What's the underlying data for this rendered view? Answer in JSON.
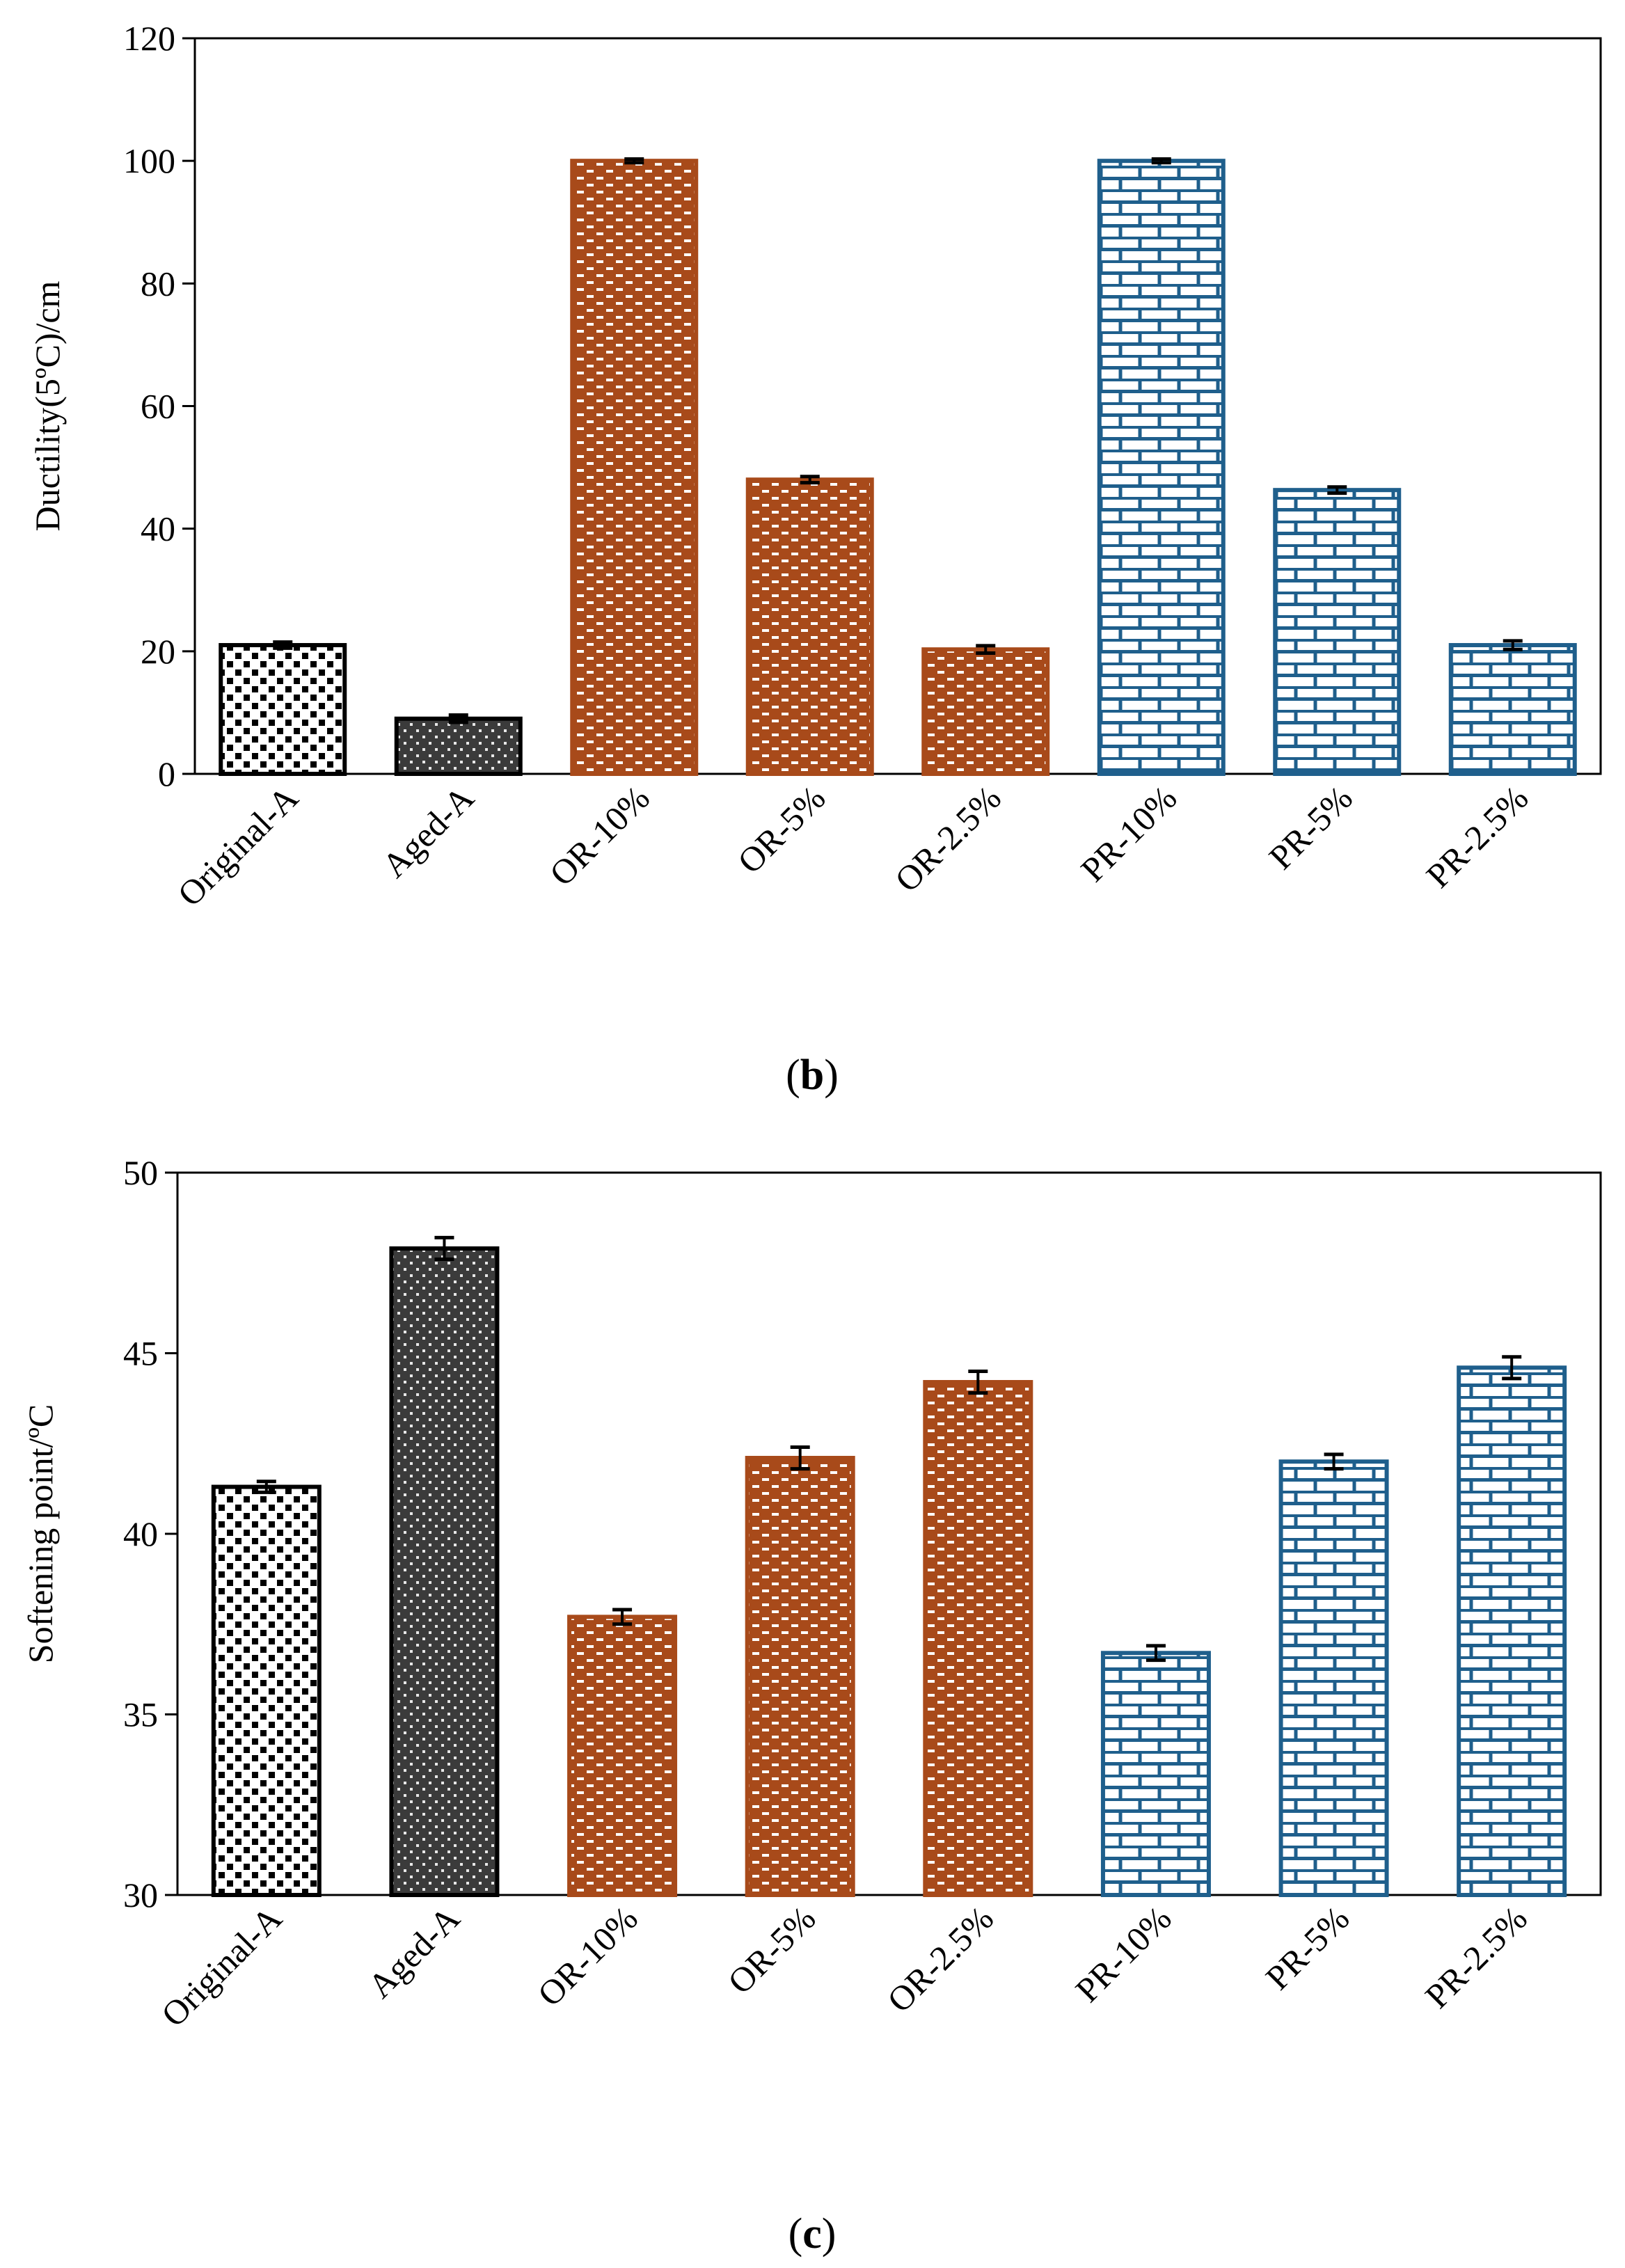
{
  "figure": {
    "caption_b": "b",
    "caption_c": "c"
  },
  "colors": {
    "original": "#000000",
    "aged": "#3b3b3b",
    "or": "#a84a1a",
    "pr": "#1f5f8c"
  },
  "chart_data": [
    {
      "id": "b",
      "type": "bar",
      "title": "",
      "xlabel": "",
      "ylabel": "Ductility(5ºC)/cm",
      "ylim": [
        0,
        120
      ],
      "yticks": [
        0,
        20,
        40,
        60,
        80,
        100,
        120
      ],
      "categories": [
        "Original-A",
        "Aged-A",
        "OR-10%",
        "OR-5%",
        "OR-2.5%",
        "PR-10%",
        "PR-5%",
        "PR-2.5%"
      ],
      "values": [
        21,
        9,
        100,
        48,
        20.3,
        100,
        46.3,
        21
      ],
      "errors": [
        0.5,
        0.6,
        0.3,
        0.5,
        0.6,
        0.3,
        0.5,
        0.7
      ],
      "patterns": [
        "dots",
        "dark",
        "dash",
        "dash",
        "dash",
        "brick",
        "brick",
        "brick"
      ]
    },
    {
      "id": "c",
      "type": "bar",
      "title": "",
      "xlabel": "",
      "ylabel": "Softening point/ºC",
      "ylim": [
        30,
        50
      ],
      "yticks": [
        30,
        35,
        40,
        45,
        50
      ],
      "categories": [
        "Original-A",
        "Aged-A",
        "OR-10%",
        "OR-5%",
        "OR-2.5%",
        "PR-10%",
        "PR-5%",
        "PR-2.5%"
      ],
      "values": [
        41.3,
        47.9,
        37.7,
        42.1,
        44.2,
        36.7,
        42,
        44.6
      ],
      "errors": [
        0.15,
        0.3,
        0.2,
        0.3,
        0.3,
        0.2,
        0.2,
        0.3
      ],
      "patterns": [
        "dots",
        "dark",
        "dash",
        "dash",
        "dash",
        "brick",
        "brick",
        "brick"
      ]
    }
  ]
}
